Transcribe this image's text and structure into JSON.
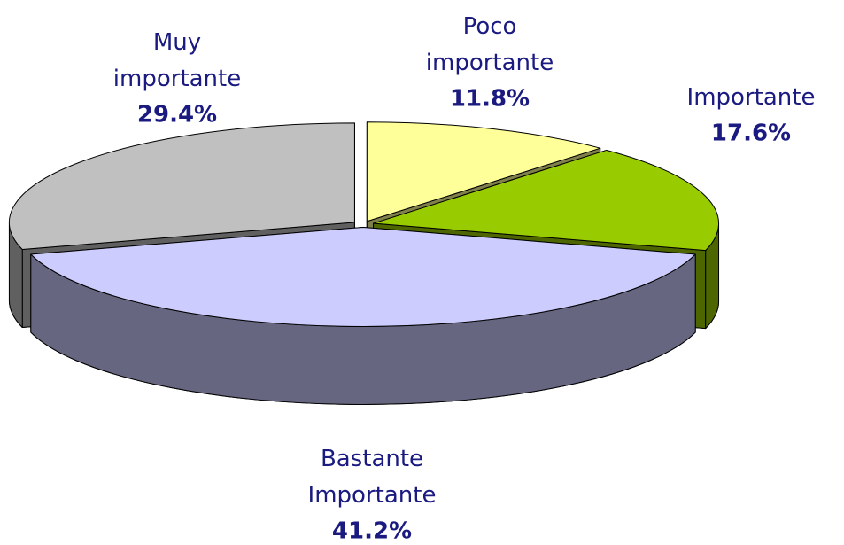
{
  "chart_data": {
    "type": "pie",
    "categories": [
      "Poco importante",
      "Importante",
      "Bastante Importante",
      "Muy importante"
    ],
    "values": [
      11.8,
      17.6,
      41.2,
      29.4
    ],
    "value_labels": [
      "11.8%",
      "17.6%",
      "41.2%",
      "29.4%"
    ],
    "colors": [
      "#ffff99",
      "#99cc00",
      "#ccccff",
      "#c0c0c0"
    ],
    "three_d": true,
    "exploded": true
  }
}
